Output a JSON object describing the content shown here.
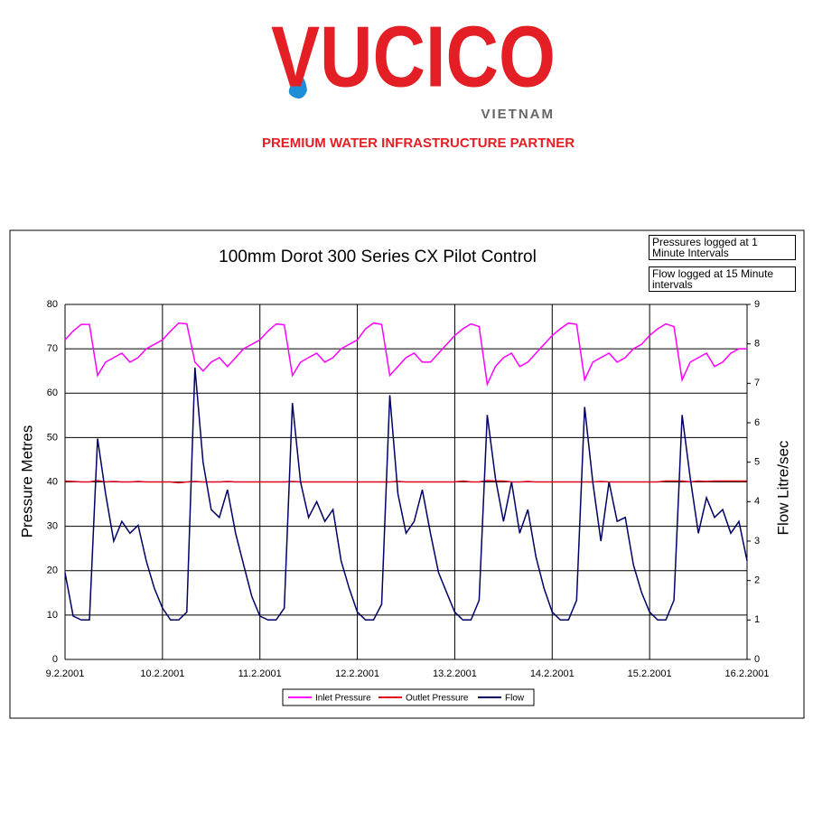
{
  "logo": {
    "name": "VUCICO",
    "country": "VIETNAM",
    "tagline": "PREMIUM WATER INFRASTRUCTURE PARTNER"
  },
  "chart_data": {
    "type": "line",
    "title": "100mm Dorot 300 Series CX Pilot Control",
    "annotations": [
      "Pressures logged at 1 Minute Intervals",
      "Flow logged at 15 Minute intervals"
    ],
    "y_label": "Pressure Metres",
    "y2_label": "Flow Litre/sec",
    "categories": [
      "9.2.2001",
      null,
      null,
      null,
      null,
      null,
      null,
      null,
      null,
      null,
      null,
      null,
      "10.2.2001",
      null,
      null,
      null,
      null,
      null,
      null,
      null,
      null,
      null,
      null,
      null,
      "11.2.2001",
      null,
      null,
      null,
      null,
      null,
      null,
      null,
      null,
      null,
      null,
      null,
      "12.2.2001",
      null,
      null,
      null,
      null,
      null,
      null,
      null,
      null,
      null,
      null,
      null,
      "13.2.2001",
      null,
      null,
      null,
      null,
      null,
      null,
      null,
      null,
      null,
      null,
      null,
      "14.2.2001",
      null,
      null,
      null,
      null,
      null,
      null,
      null,
      null,
      null,
      null,
      null,
      "15.2.2001",
      null,
      null,
      null,
      null,
      null,
      null,
      null,
      null,
      null,
      null,
      null,
      "16.2.2001"
    ],
    "series": [
      {
        "name": "Inlet Pressure",
        "color": "#ff00ff",
        "values": [
          72,
          74,
          75.5,
          75.5,
          64,
          67,
          68,
          69,
          67,
          68,
          70,
          71,
          72,
          74,
          75.8,
          75.6,
          67,
          65,
          67,
          68,
          66,
          68,
          70,
          71,
          72,
          74,
          75.6,
          75.4,
          64,
          67,
          68,
          69,
          67,
          68,
          70,
          71,
          72,
          74.5,
          75.8,
          75.5,
          64,
          66,
          68,
          69,
          67,
          67,
          69,
          71,
          73,
          74.5,
          75.6,
          75,
          62,
          66,
          68,
          69,
          66,
          67,
          69,
          71,
          73,
          74.5,
          75.8,
          75.5,
          63,
          67,
          68,
          69,
          67,
          68,
          70,
          71,
          73,
          74.5,
          75.6,
          75,
          63,
          67,
          68,
          69,
          66,
          67,
          69,
          70,
          70
        ]
      },
      {
        "name": "Outlet Pressure",
        "color": "#e0001b",
        "values": [
          40.2,
          40.1,
          40,
          40,
          40.3,
          40,
          40.1,
          40,
          40,
          40.1,
          40,
          40,
          40,
          40,
          39.8,
          40,
          40.1,
          40,
          40,
          40,
          40.1,
          40,
          40,
          40,
          40,
          40,
          40,
          40,
          40.1,
          40,
          40,
          40,
          40,
          40,
          40,
          40,
          40,
          40,
          40,
          40,
          40,
          40.1,
          40,
          40,
          40,
          40,
          40,
          40,
          40,
          40.2,
          40,
          40,
          40.3,
          40.2,
          40.2,
          40,
          40,
          40.1,
          40,
          40,
          40,
          40,
          40,
          40,
          40,
          40,
          40.1,
          40,
          40,
          40,
          40,
          40,
          40,
          40,
          40.2,
          40.2,
          40.2,
          40,
          40.2,
          40.1,
          40.2,
          40.2,
          40.2,
          40.2,
          40.2
        ]
      },
      {
        "name": "Flow",
        "color": "#000066",
        "axis": "y2",
        "values": [
          2.2,
          1.1,
          1.0,
          1.0,
          5.6,
          4.2,
          3.0,
          3.5,
          3.2,
          3.4,
          2.5,
          1.8,
          1.3,
          1.0,
          1.0,
          1.2,
          7.4,
          5.0,
          3.8,
          3.6,
          4.3,
          3.2,
          2.4,
          1.6,
          1.1,
          1.0,
          1.0,
          1.3,
          6.5,
          4.5,
          3.6,
          4.0,
          3.5,
          3.8,
          2.5,
          1.8,
          1.2,
          1.0,
          1.0,
          1.4,
          6.7,
          4.2,
          3.2,
          3.5,
          4.3,
          3.2,
          2.2,
          1.7,
          1.2,
          1.0,
          1.0,
          1.5,
          6.2,
          4.6,
          3.5,
          4.5,
          3.2,
          3.8,
          2.6,
          1.8,
          1.2,
          1.0,
          1.0,
          1.5,
          6.4,
          4.5,
          3.0,
          4.5,
          3.5,
          3.6,
          2.4,
          1.7,
          1.2,
          1.0,
          1.0,
          1.5,
          6.2,
          4.6,
          3.2,
          4.1,
          3.6,
          3.8,
          3.2,
          3.5,
          2.5
        ]
      }
    ],
    "ylim": [
      0,
      80
    ],
    "yticks": [
      0,
      10,
      20,
      30,
      40,
      50,
      60,
      70,
      80
    ],
    "y2lim": [
      0,
      9
    ],
    "y2ticks": [
      0,
      1,
      2,
      3,
      4,
      5,
      6,
      7,
      8,
      9
    ],
    "grid": true,
    "legend": "bottom"
  }
}
